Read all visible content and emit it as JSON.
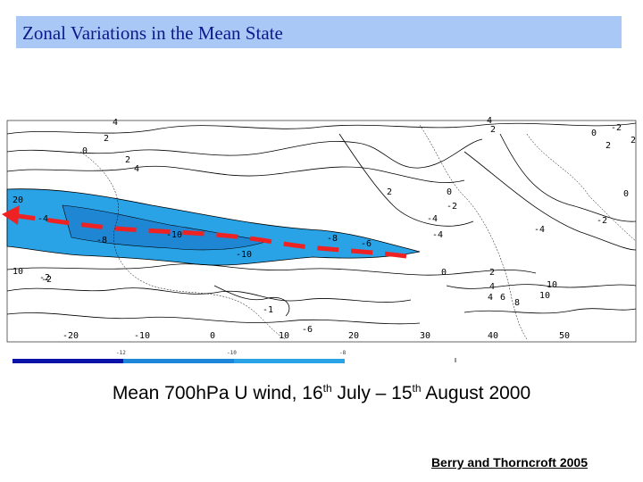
{
  "title": "Zonal Variations in the Mean State",
  "caption": {
    "prefix": "Mean 700hPa U wind, 16",
    "sup1": "th",
    "middle": " July – 15",
    "sup2": "th",
    "suffix": " August 2000"
  },
  "credit": "Berry and Thorncroft 2005",
  "map": {
    "x_tick_labels": [
      "-20",
      "-10",
      "0",
      "10",
      "20",
      "30",
      "40",
      "50"
    ],
    "y_tick_labels": [
      "20",
      "10"
    ],
    "contour_labels_upper": [
      "0",
      "2",
      "4",
      "2",
      "4",
      "2",
      "0",
      "2",
      "4",
      "0",
      "2",
      "-2",
      "2",
      "0",
      "-2"
    ],
    "contour_labels_jet": [
      "-4",
      "-8",
      "-10",
      "-10",
      "-8",
      "-6",
      "-4",
      "-4",
      "-2",
      "-4"
    ],
    "contour_labels_lower": [
      "-2",
      "4",
      "2",
      "8",
      "10",
      "10",
      "6",
      "4",
      "-1",
      "0",
      "-6",
      "-2"
    ],
    "colorbar_labels": [
      "-12",
      "-10",
      "-8"
    ],
    "colors": {
      "jet_fill": "#29a3e6",
      "jet_core": "#1f86d4",
      "arrow": "#ee2222",
      "colorbar": [
        "#0a12a8",
        "#1e86d8",
        "#29a3e6"
      ]
    }
  }
}
